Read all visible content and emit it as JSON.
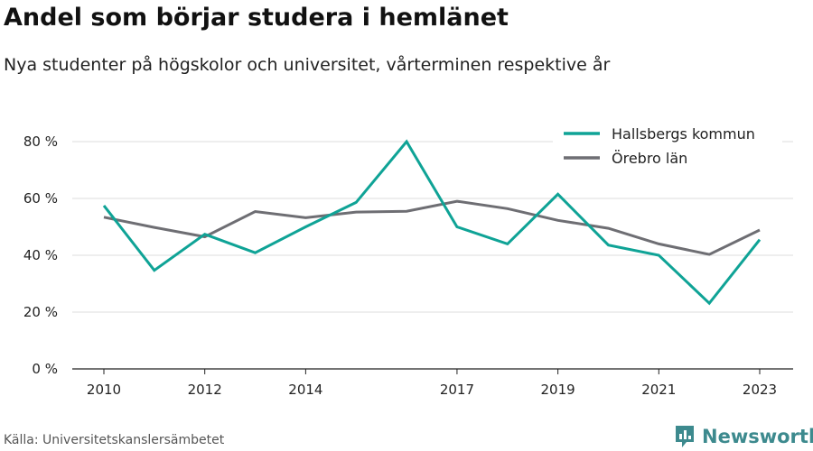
{
  "header": {
    "title": "Andel som börjar studera i hemlänet",
    "subtitle": "Nya studenter på högskolor och universitet, vårterminen respektive år"
  },
  "footer": {
    "source": "Källa: Universitetskanslersämbetet",
    "brand": "Newsworthy",
    "brand_icon": "bar-chart-logo-icon",
    "brand_color": "#3d8a8e"
  },
  "chart_data": {
    "type": "line",
    "title": "Andel som börjar studera i hemlänet",
    "subtitle": "Nya studenter på högskolor och universitet, vårterminen respektive år",
    "xlabel": "",
    "ylabel": "",
    "x": [
      2010,
      2011,
      2012,
      2013,
      2014,
      2015,
      2016,
      2017,
      2018,
      2019,
      2020,
      2021,
      2022,
      2023
    ],
    "x_tick_labels": [
      "2010",
      "2012",
      "2014",
      "2017",
      "2019",
      "2021",
      "2023"
    ],
    "y_tick_labels": [
      "0 %",
      "20 %",
      "40 %",
      "60 %",
      "80 %"
    ],
    "ylim": [
      0,
      85
    ],
    "grid": "horizontal",
    "legend_position": "top-right",
    "series": [
      {
        "name": "Hallsbergs kommun",
        "color": "#0fa396",
        "values": [
          57.5,
          34.7,
          47.4,
          40.9,
          50.0,
          58.6,
          80.0,
          50.0,
          44.0,
          61.5,
          43.6,
          40.0,
          23.1,
          45.5
        ]
      },
      {
        "name": "Örebro län",
        "color": "#6e6e73",
        "values": [
          53.4,
          49.8,
          46.5,
          55.4,
          53.2,
          55.2,
          55.5,
          59.0,
          56.4,
          52.3,
          49.5,
          44.0,
          40.3,
          48.9
        ]
      }
    ]
  }
}
